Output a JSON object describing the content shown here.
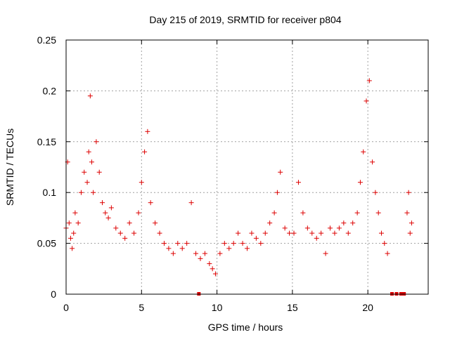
{
  "chart_data": {
    "type": "scatter",
    "title": "Day 215 of 2019, SRMTID for receiver p804",
    "xlabel": "GPS time / hours",
    "ylabel": "SRMTID / TECUs",
    "xlim": [
      0,
      24
    ],
    "ylim": [
      0,
      0.25
    ],
    "xticks": [
      0,
      5,
      10,
      15,
      20
    ],
    "xtick_labels": [
      "0",
      "5",
      "10",
      "15",
      "20"
    ],
    "yticks": [
      0,
      0.05,
      0.1,
      0.15,
      0.2,
      0.25
    ],
    "ytick_labels": [
      "0",
      "0.05",
      "0.1",
      "0.15",
      "0.2",
      "0.25"
    ],
    "grid": true,
    "marker": "+",
    "color": "#dd0000",
    "series": [
      {
        "name": "SRMTID",
        "x": [
          0.0,
          0.1,
          0.2,
          0.3,
          0.4,
          0.5,
          0.6,
          0.8,
          1.0,
          1.2,
          1.4,
          1.5,
          1.6,
          1.7,
          1.8,
          2.0,
          2.2,
          2.4,
          2.6,
          2.8,
          3.0,
          3.3,
          3.6,
          3.9,
          4.2,
          4.5,
          4.8,
          5.0,
          5.2,
          5.4,
          5.6,
          5.9,
          6.2,
          6.5,
          6.8,
          7.1,
          7.4,
          7.7,
          8.0,
          8.3,
          8.6,
          8.9,
          9.2,
          9.5,
          9.7,
          9.9,
          10.2,
          10.5,
          10.8,
          11.1,
          11.4,
          11.7,
          12.0,
          12.3,
          12.6,
          12.9,
          13.2,
          13.5,
          13.8,
          14.0,
          14.2,
          14.5,
          14.8,
          15.1,
          15.4,
          15.7,
          16.0,
          16.3,
          16.6,
          16.9,
          17.2,
          17.5,
          17.8,
          18.1,
          18.4,
          18.7,
          19.0,
          19.3,
          19.5,
          19.7,
          19.9,
          20.1,
          20.3,
          20.5,
          20.7,
          20.9,
          21.1,
          21.3,
          22.6,
          22.7,
          22.8,
          22.9
        ],
        "y": [
          0.065,
          0.13,
          0.07,
          0.055,
          0.045,
          0.06,
          0.08,
          0.07,
          0.1,
          0.12,
          0.11,
          0.14,
          0.195,
          0.13,
          0.1,
          0.15,
          0.12,
          0.09,
          0.08,
          0.075,
          0.085,
          0.065,
          0.06,
          0.055,
          0.07,
          0.06,
          0.08,
          0.11,
          0.14,
          0.16,
          0.09,
          0.07,
          0.06,
          0.05,
          0.045,
          0.04,
          0.05,
          0.045,
          0.05,
          0.09,
          0.04,
          0.035,
          0.04,
          0.03,
          0.025,
          0.02,
          0.04,
          0.05,
          0.045,
          0.05,
          0.06,
          0.05,
          0.045,
          0.06,
          0.055,
          0.05,
          0.06,
          0.07,
          0.08,
          0.1,
          0.12,
          0.065,
          0.06,
          0.06,
          0.11,
          0.08,
          0.065,
          0.06,
          0.055,
          0.06,
          0.04,
          0.065,
          0.06,
          0.065,
          0.07,
          0.06,
          0.07,
          0.08,
          0.11,
          0.14,
          0.19,
          0.21,
          0.13,
          0.1,
          0.08,
          0.06,
          0.05,
          0.04,
          0.08,
          0.1,
          0.06,
          0.07
        ]
      }
    ],
    "gap_markers_x": [
      8.8,
      21.6,
      21.9,
      22.2,
      22.4
    ]
  }
}
